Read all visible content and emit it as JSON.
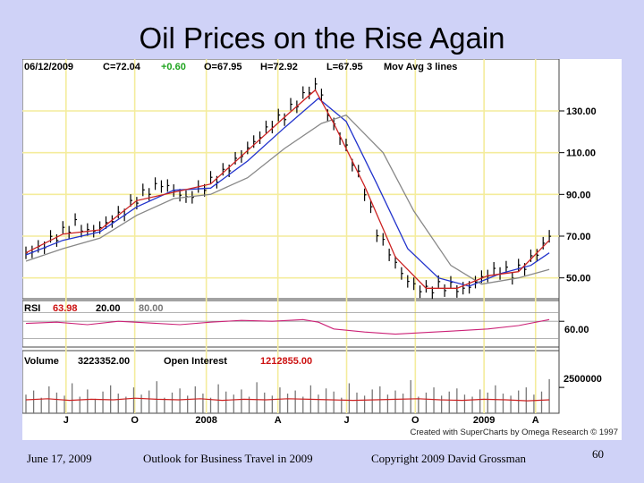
{
  "slide": {
    "title": "Oil Prices on the Rise Again",
    "footer_date": "June 17, 2009",
    "footer_center": "Outlook for Business Travel in 2009",
    "footer_copyright": "Copyright 2009 David Grossman",
    "slide_number": "60"
  },
  "chart_data": {
    "type": "line",
    "header": {
      "date": "06/12/2009",
      "close": "C=72.04",
      "change": "+0.60",
      "open": "O=67.95",
      "high": "H=72.92",
      "low": "L=67.95",
      "mov_avg": "Mov Avg 3 lines"
    },
    "x_labels": [
      "J",
      "O",
      "2008",
      "A",
      "J",
      "O",
      "2009",
      "A"
    ],
    "price_ticks": [
      "130.00",
      "110.00",
      "90.00",
      "70.00",
      "50.00"
    ],
    "price_tick_values": [
      130,
      110,
      90,
      70,
      50
    ],
    "price_range": [
      40,
      148
    ],
    "price_series": [
      {
        "t": 0,
        "v": 62
      },
      {
        "t": 4,
        "v": 64
      },
      {
        "t": 8,
        "v": 68
      },
      {
        "t": 12,
        "v": 72
      },
      {
        "t": 16,
        "v": 76
      },
      {
        "t": 20,
        "v": 72
      },
      {
        "t": 24,
        "v": 74
      },
      {
        "t": 28,
        "v": 78
      },
      {
        "t": 32,
        "v": 82
      },
      {
        "t": 36,
        "v": 88
      },
      {
        "t": 40,
        "v": 92
      },
      {
        "t": 44,
        "v": 95
      },
      {
        "t": 48,
        "v": 92
      },
      {
        "t": 52,
        "v": 88
      },
      {
        "t": 56,
        "v": 92
      },
      {
        "t": 60,
        "v": 96
      },
      {
        "t": 64,
        "v": 100
      },
      {
        "t": 68,
        "v": 106
      },
      {
        "t": 72,
        "v": 112
      },
      {
        "t": 76,
        "v": 118
      },
      {
        "t": 80,
        "v": 124
      },
      {
        "t": 84,
        "v": 128
      },
      {
        "t": 88,
        "v": 134
      },
      {
        "t": 92,
        "v": 140
      },
      {
        "t": 95,
        "v": 143
      },
      {
        "t": 98,
        "v": 128
      },
      {
        "t": 102,
        "v": 118
      },
      {
        "t": 106,
        "v": 106
      },
      {
        "t": 110,
        "v": 92
      },
      {
        "t": 114,
        "v": 72
      },
      {
        "t": 118,
        "v": 62
      },
      {
        "t": 122,
        "v": 52
      },
      {
        "t": 126,
        "v": 46
      },
      {
        "t": 130,
        "v": 44
      },
      {
        "t": 134,
        "v": 46
      },
      {
        "t": 138,
        "v": 46
      },
      {
        "t": 142,
        "v": 44
      },
      {
        "t": 146,
        "v": 48
      },
      {
        "t": 150,
        "v": 52
      },
      {
        "t": 154,
        "v": 54
      },
      {
        "t": 158,
        "v": 52
      },
      {
        "t": 162,
        "v": 56
      },
      {
        "t": 166,
        "v": 62
      },
      {
        "t": 170,
        "v": 70
      }
    ],
    "moving_averages": [
      {
        "color": "#2233cc",
        "points": [
          {
            "t": 0,
            "v": 61
          },
          {
            "t": 12,
            "v": 68
          },
          {
            "t": 24,
            "v": 72
          },
          {
            "t": 36,
            "v": 84
          },
          {
            "t": 48,
            "v": 92
          },
          {
            "t": 60,
            "v": 93
          },
          {
            "t": 72,
            "v": 106
          },
          {
            "t": 84,
            "v": 122
          },
          {
            "t": 95,
            "v": 136
          },
          {
            "t": 104,
            "v": 125
          },
          {
            "t": 114,
            "v": 95
          },
          {
            "t": 124,
            "v": 64
          },
          {
            "t": 134,
            "v": 50
          },
          {
            "t": 144,
            "v": 46
          },
          {
            "t": 154,
            "v": 52
          },
          {
            "t": 164,
            "v": 56
          },
          {
            "t": 170,
            "v": 62
          }
        ]
      },
      {
        "color": "#888888",
        "points": [
          {
            "t": 0,
            "v": 58
          },
          {
            "t": 12,
            "v": 64
          },
          {
            "t": 24,
            "v": 69
          },
          {
            "t": 36,
            "v": 80
          },
          {
            "t": 48,
            "v": 88
          },
          {
            "t": 60,
            "v": 90
          },
          {
            "t": 72,
            "v": 98
          },
          {
            "t": 84,
            "v": 112
          },
          {
            "t": 96,
            "v": 124
          },
          {
            "t": 104,
            "v": 128
          },
          {
            "t": 116,
            "v": 110
          },
          {
            "t": 126,
            "v": 82
          },
          {
            "t": 138,
            "v": 56
          },
          {
            "t": 148,
            "v": 47
          },
          {
            "t": 160,
            "v": 50
          },
          {
            "t": 170,
            "v": 54
          }
        ]
      },
      {
        "color": "#cc2222",
        "points": [
          {
            "t": 0,
            "v": 62
          },
          {
            "t": 12,
            "v": 71
          },
          {
            "t": 24,
            "v": 73
          },
          {
            "t": 36,
            "v": 87
          },
          {
            "t": 48,
            "v": 91
          },
          {
            "t": 60,
            "v": 95
          },
          {
            "t": 72,
            "v": 111
          },
          {
            "t": 84,
            "v": 127
          },
          {
            "t": 94,
            "v": 140
          },
          {
            "t": 100,
            "v": 124
          },
          {
            "t": 110,
            "v": 94
          },
          {
            "t": 120,
            "v": 60
          },
          {
            "t": 130,
            "v": 45
          },
          {
            "t": 140,
            "v": 45
          },
          {
            "t": 150,
            "v": 51
          },
          {
            "t": 160,
            "v": 53
          },
          {
            "t": 170,
            "v": 68
          }
        ]
      }
    ],
    "rsi": {
      "label": "RSI",
      "value": "63.98",
      "lower": "20.00",
      "upper": "80.00",
      "tick": "60.00",
      "range": [
        0,
        100
      ],
      "series": [
        {
          "t": 0,
          "v": 55
        },
        {
          "t": 10,
          "v": 58
        },
        {
          "t": 20,
          "v": 52
        },
        {
          "t": 30,
          "v": 60
        },
        {
          "t": 40,
          "v": 56
        },
        {
          "t": 50,
          "v": 52
        },
        {
          "t": 60,
          "v": 58
        },
        {
          "t": 70,
          "v": 62
        },
        {
          "t": 80,
          "v": 60
        },
        {
          "t": 90,
          "v": 64
        },
        {
          "t": 95,
          "v": 58
        },
        {
          "t": 100,
          "v": 42
        },
        {
          "t": 110,
          "v": 35
        },
        {
          "t": 120,
          "v": 30
        },
        {
          "t": 130,
          "v": 34
        },
        {
          "t": 140,
          "v": 38
        },
        {
          "t": 150,
          "v": 42
        },
        {
          "t": 160,
          "v": 50
        },
        {
          "t": 170,
          "v": 64
        }
      ]
    },
    "volume": {
      "label": "Volume",
      "value": "3223352.00",
      "open_interest_label": "Open Interest",
      "open_interest_value": "1212855.00",
      "tick": "2500000",
      "tick_value": 2500000,
      "range": [
        0,
        4500000
      ],
      "bars": [
        1800000,
        2200000,
        1500000,
        2600000,
        2000000,
        1700000,
        2900000,
        1600000,
        2300000,
        1400000,
        2100000,
        2700000,
        1900000,
        1600000,
        2500000,
        1800000,
        2200000,
        3100000,
        1500000,
        2000000,
        2400000,
        1700000,
        2600000,
        1900000,
        1500000,
        2800000,
        2100000,
        1800000,
        2300000,
        1600000,
        3000000,
        2000000,
        1700000,
        2500000,
        1900000,
        2200000,
        1600000,
        2700000,
        1800000,
        2400000,
        2100000,
        1500000,
        2900000,
        2000000,
        1700000,
        2300000,
        2600000,
        1800000,
        2200000,
        1900000,
        3200000,
        1600000,
        2000000,
        2500000,
        1700000,
        2100000,
        2400000,
        1800000,
        1600000,
        2300000,
        2000000,
        2700000,
        1900000,
        1700000,
        2200000,
        2500000,
        1800000,
        2100000,
        3300000
      ],
      "open_interest": [
        1300000,
        1400000,
        1250000,
        1350000,
        1300000,
        1450000,
        1350000,
        1300000,
        1400000,
        1250000,
        1350000,
        1300000,
        1400000,
        1350000,
        1300000,
        1250000,
        1300000,
        1350000,
        1400000,
        1300000,
        1250000,
        1350000,
        1300000,
        1200000,
        1300000
      ]
    },
    "credit": "Created with SuperCharts by Omega Research © 1997"
  }
}
